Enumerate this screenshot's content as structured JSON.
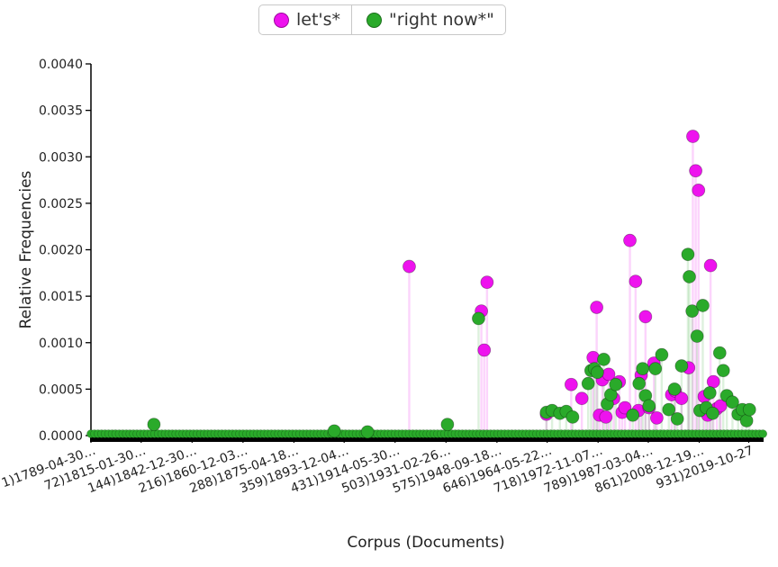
{
  "legend": {
    "items": [
      {
        "label": "let's*",
        "color": "#ee12ee"
      },
      {
        "label": "\"right now*\"",
        "color": "#2aaa2a"
      }
    ]
  },
  "chart_data": {
    "type": "scatter",
    "title": "",
    "xlabel": "Corpus (Documents)",
    "ylabel": "Relative Frequencies",
    "xlim": [
      1,
      952
    ],
    "ylim": [
      0,
      0.004
    ],
    "yticks": [
      "0.0000",
      "0.0005",
      "0.0010",
      "0.0015",
      "0.0020",
      "0.0025",
      "0.0030",
      "0.0035",
      "0.0040"
    ],
    "xticks": [
      {
        "x": 1,
        "label": "1)1789-04-30…"
      },
      {
        "x": 72,
        "label": "72)1815-01-30…"
      },
      {
        "x": 144,
        "label": "144)1842-12-30…"
      },
      {
        "x": 216,
        "label": "216)1860-12-03…"
      },
      {
        "x": 288,
        "label": "288)1875-04-18…"
      },
      {
        "x": 359,
        "label": "359)1893-12-04…"
      },
      {
        "x": 431,
        "label": "431)1914-05-30…"
      },
      {
        "x": 503,
        "label": "503)1931-02-26…"
      },
      {
        "x": 575,
        "label": "575)1948-09-18…"
      },
      {
        "x": 646,
        "label": "646)1964-05-22…"
      },
      {
        "x": 718,
        "label": "718)1972-11-07…"
      },
      {
        "x": 789,
        "label": "789)1987-03-04…"
      },
      {
        "x": 861,
        "label": "861)2008-12-19…"
      },
      {
        "x": 931,
        "label": "931)2019-10-27"
      }
    ],
    "series": [
      {
        "name": "let's*",
        "color": "#ee12ee",
        "points": [
          [
            451,
            0.00182
          ],
          [
            553,
            0.00134
          ],
          [
            557,
            0.00092
          ],
          [
            561,
            0.00165
          ],
          [
            645,
            0.00023
          ],
          [
            680,
            0.00055
          ],
          [
            695,
            0.0004
          ],
          [
            711,
            0.00084
          ],
          [
            716,
            0.00138
          ],
          [
            720,
            0.00022
          ],
          [
            724,
            0.0006
          ],
          [
            729,
            0.0002
          ],
          [
            733,
            0.00066
          ],
          [
            740,
            0.0004
          ],
          [
            748,
            0.00058
          ],
          [
            752,
            0.00025
          ],
          [
            756,
            0.0003
          ],
          [
            763,
            0.0021
          ],
          [
            771,
            0.00166
          ],
          [
            775,
            0.00027
          ],
          [
            779,
            0.00065
          ],
          [
            785,
            0.00128
          ],
          [
            790,
            0.0003
          ],
          [
            797,
            0.00078
          ],
          [
            801,
            0.00019
          ],
          [
            822,
            0.00044
          ],
          [
            827,
            0.00048
          ],
          [
            836,
            0.0004
          ],
          [
            846,
            0.00073
          ],
          [
            852,
            0.00322
          ],
          [
            856,
            0.00285
          ],
          [
            860,
            0.00264
          ],
          [
            868,
            0.00042
          ],
          [
            873,
            0.00022
          ],
          [
            877,
            0.00183
          ],
          [
            881,
            0.00058
          ],
          [
            886,
            0.00029
          ],
          [
            891,
            0.00032
          ]
        ]
      },
      {
        "name": "\"right now*\"",
        "color": "#2aaa2a",
        "points": [
          [
            90,
            0.00012
          ],
          [
            345,
            5e-05
          ],
          [
            392,
            4e-05
          ],
          [
            505,
            0.00012
          ],
          [
            549,
            0.00126
          ],
          [
            645,
            0.00025
          ],
          [
            653,
            0.00027
          ],
          [
            664,
            0.00024
          ],
          [
            673,
            0.00026
          ],
          [
            682,
            0.0002
          ],
          [
            704,
            0.00056
          ],
          [
            708,
            0.0007
          ],
          [
            713,
            0.00072
          ],
          [
            717,
            0.00068
          ],
          [
            726,
            0.00082
          ],
          [
            731,
            0.00034
          ],
          [
            736,
            0.00044
          ],
          [
            743,
            0.00055
          ],
          [
            767,
            0.00022
          ],
          [
            776,
            0.00056
          ],
          [
            781,
            0.00072
          ],
          [
            785,
            0.00043
          ],
          [
            790,
            0.00032
          ],
          [
            799,
            0.00072
          ],
          [
            808,
            0.00087
          ],
          [
            818,
            0.00028
          ],
          [
            826,
            0.0005
          ],
          [
            830,
            0.00018
          ],
          [
            836,
            0.00075
          ],
          [
            845,
            0.00195
          ],
          [
            847,
            0.00171
          ],
          [
            851,
            0.00134
          ],
          [
            858,
            0.00107
          ],
          [
            862,
            0.00027
          ],
          [
            866,
            0.0014
          ],
          [
            871,
            0.0003
          ],
          [
            876,
            0.00046
          ],
          [
            880,
            0.00024
          ],
          [
            890,
            0.00089
          ],
          [
            895,
            0.0007
          ],
          [
            900,
            0.00043
          ],
          [
            908,
            0.00036
          ],
          [
            916,
            0.00023
          ],
          [
            922,
            0.00028
          ],
          [
            928,
            0.00016
          ],
          [
            932,
            0.00028
          ]
        ]
      }
    ]
  }
}
